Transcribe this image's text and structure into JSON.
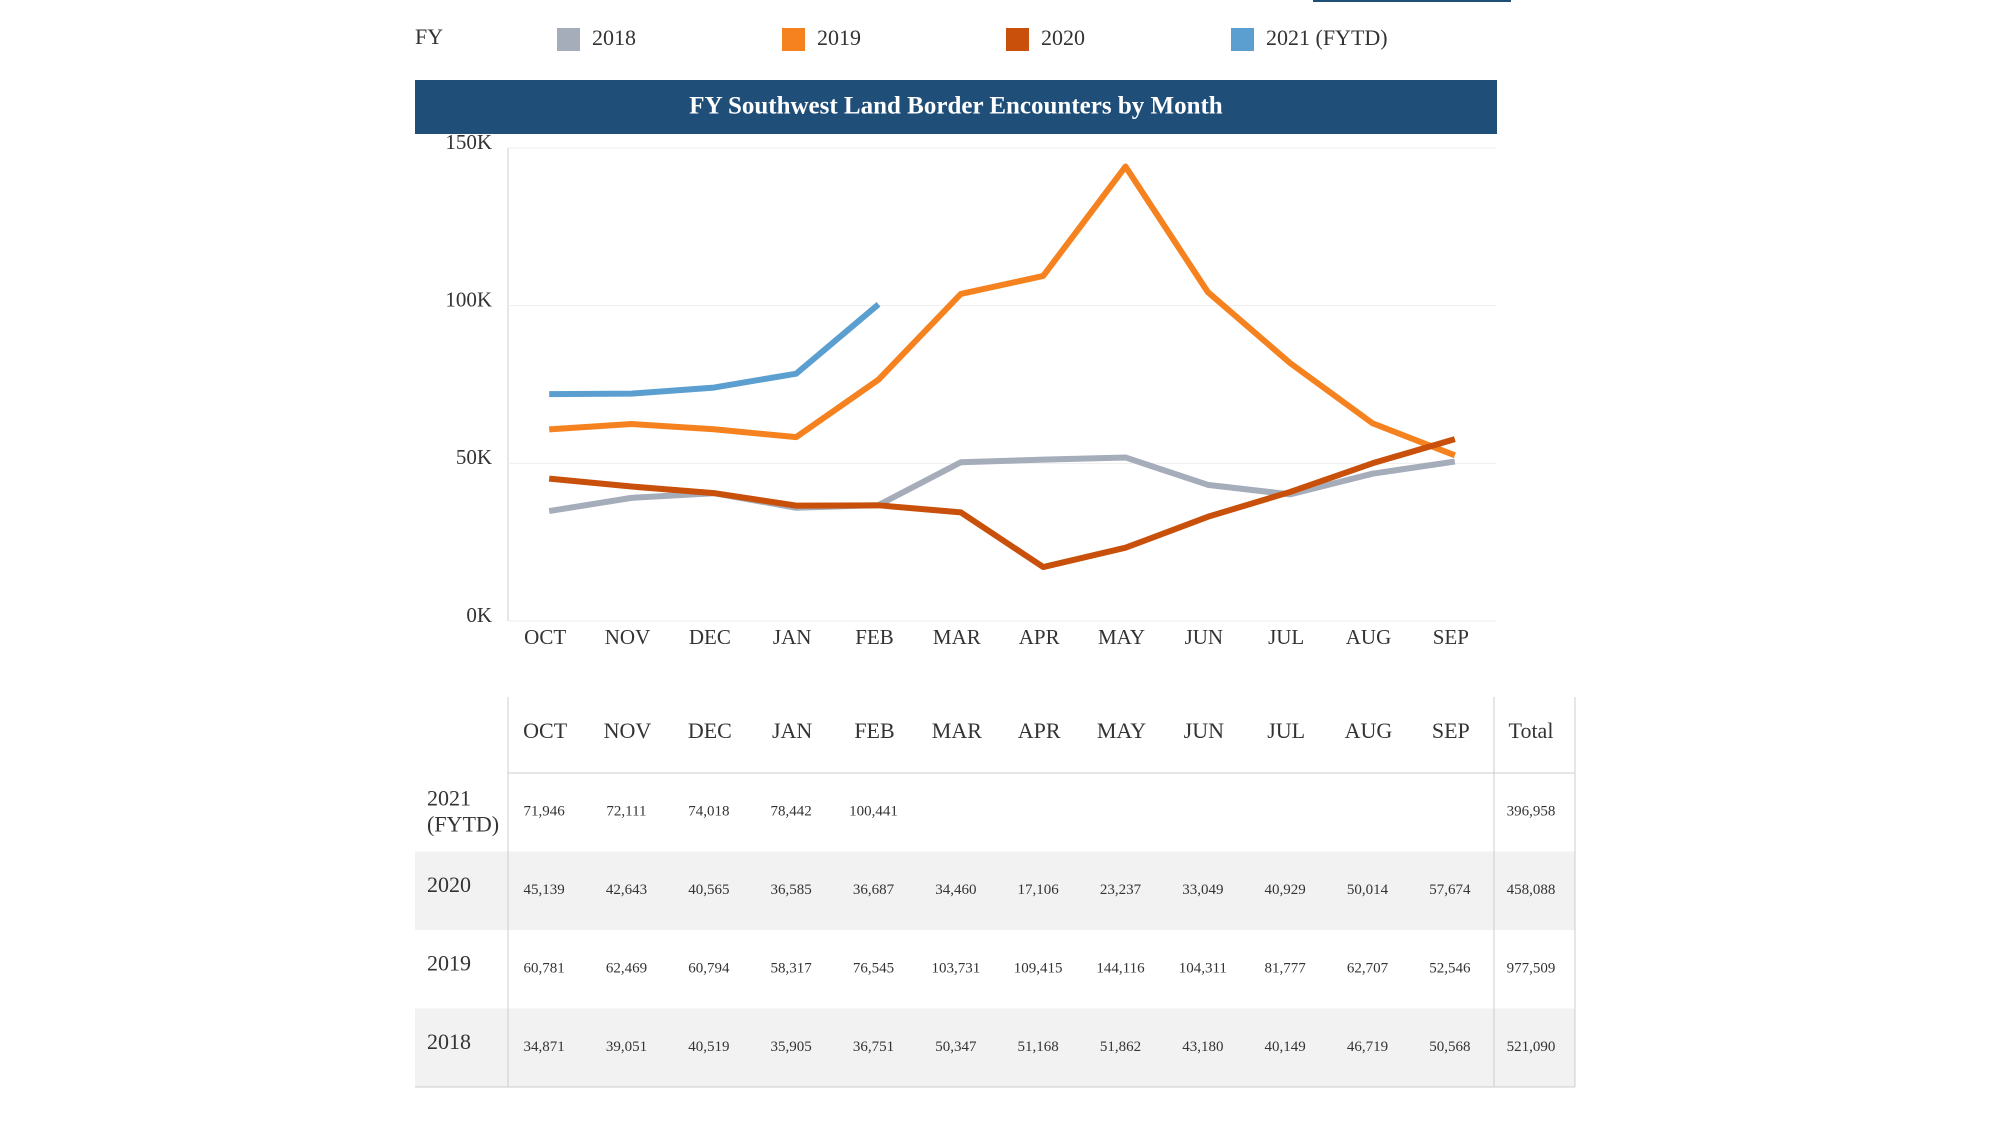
{
  "chart_data": {
    "type": "line",
    "title": "FY Southwest Land Border Encounters by Month",
    "legend_title": "FY",
    "categories": [
      "OCT",
      "NOV",
      "DEC",
      "JAN",
      "FEB",
      "MAR",
      "APR",
      "MAY",
      "JUN",
      "JUL",
      "AUG",
      "SEP"
    ],
    "ylim": [
      0,
      150000
    ],
    "yticks": [
      {
        "value": 0,
        "label": "0K"
      },
      {
        "value": 50000,
        "label": "50K"
      },
      {
        "value": 100000,
        "label": "100K"
      },
      {
        "value": 150000,
        "label": "150K"
      }
    ],
    "grid": true,
    "series": [
      {
        "name": "2018",
        "color": "#a5acba",
        "values": [
          34871,
          39051,
          40519,
          35905,
          36751,
          50347,
          51168,
          51862,
          43180,
          40149,
          46719,
          50568
        ],
        "value_labels": [
          "34,871",
          "39,051",
          "40,519",
          "35,905",
          "36,751",
          "50,347",
          "51,168",
          "51,862",
          "43,180",
          "40,149",
          "46,719",
          "50,568"
        ]
      },
      {
        "name": "2019",
        "color": "#f5821f",
        "values": [
          60781,
          62469,
          60794,
          58317,
          76545,
          103731,
          109415,
          144116,
          104311,
          81777,
          62707,
          52546
        ],
        "value_labels": [
          "60,781",
          "62,469",
          "60,794",
          "58,317",
          "76,545",
          "103,731",
          "109,415",
          "144,116",
          "104,311",
          "81,777",
          "62,707",
          "52,546"
        ]
      },
      {
        "name": "2020",
        "color": "#c8500a",
        "values": [
          45139,
          42643,
          40565,
          36585,
          36687,
          34460,
          17106,
          23237,
          33049,
          40929,
          50014,
          57674
        ],
        "value_labels": [
          "45,139",
          "42,643",
          "40,565",
          "36,585",
          "36,687",
          "34,460",
          "17,106",
          "23,237",
          "33,049",
          "40,929",
          "50,014",
          "57,674"
        ]
      },
      {
        "name": "2021 (FYTD)",
        "color": "#5b9fd0",
        "values": [
          71946,
          72111,
          74018,
          78442,
          100441,
          null,
          null,
          null,
          null,
          null,
          null,
          null
        ],
        "value_labels": [
          "71,946",
          "72,111",
          "74,018",
          "78,442",
          "100,441",
          null,
          null,
          null,
          null,
          null,
          null,
          null
        ]
      }
    ],
    "table": {
      "total_header": "Total",
      "totals": [
        "521,090",
        "977,509",
        "458,088",
        "396,958"
      ]
    }
  }
}
